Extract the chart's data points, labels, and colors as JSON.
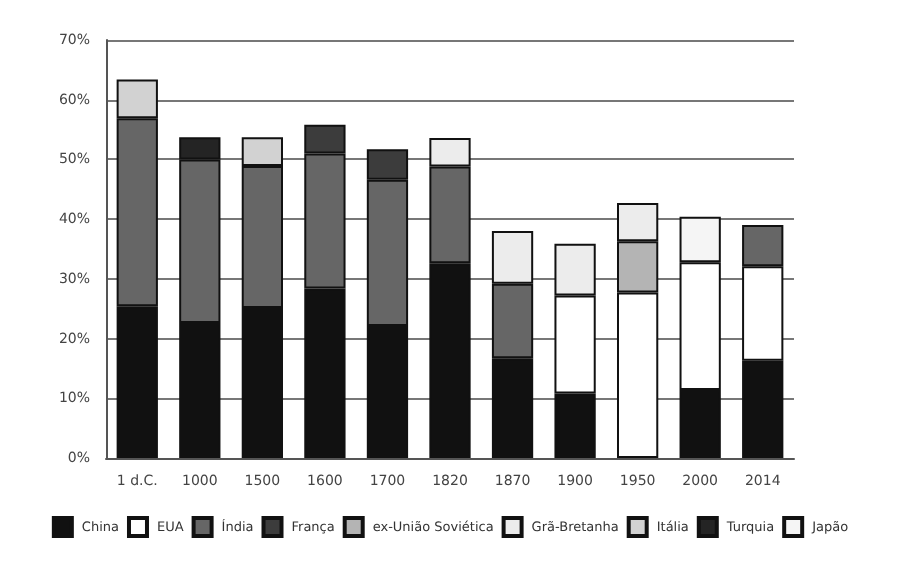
{
  "chart_data": {
    "type": "bar",
    "stacked": true,
    "categories": [
      "1 d.C.",
      "1000",
      "1500",
      "1600",
      "1700",
      "1820",
      "1870",
      "1900",
      "1950",
      "2000",
      "2014"
    ],
    "series": [
      {
        "name": "China",
        "color": "#111111",
        "values": [
          25.4,
          22.6,
          25.1,
          28.4,
          22.1,
          32.6,
          16.7,
          10.8,
          null,
          11.4,
          16.3
        ]
      },
      {
        "name": "EUA",
        "color": "#ffffff",
        "values": [
          null,
          null,
          null,
          null,
          null,
          null,
          null,
          16.4,
          27.7,
          21.4,
          15.8
        ]
      },
      {
        "name": "Índia",
        "color": "#666666",
        "values": [
          31.5,
          27.4,
          23.8,
          22.6,
          24.5,
          16.2,
          12.5,
          null,
          null,
          null,
          6.9
        ]
      },
      {
        "name": "França",
        "color": "#3c3c3c",
        "values": [
          null,
          null,
          null,
          4.8,
          5.1,
          null,
          null,
          null,
          null,
          null,
          null
        ]
      },
      {
        "name": "ex-União Soviética",
        "color": "#b4b4b4",
        "values": [
          null,
          null,
          null,
          null,
          null,
          null,
          null,
          null,
          8.6,
          null,
          null
        ]
      },
      {
        "name": "Grã-Bretanha",
        "color": "#ececec",
        "values": [
          null,
          null,
          null,
          null,
          null,
          4.8,
          8.8,
          8.7,
          6.4,
          null,
          null
        ]
      },
      {
        "name": "Itália",
        "color": "#d2d2d2",
        "values": [
          6.5,
          null,
          4.8,
          null,
          null,
          null,
          null,
          null,
          null,
          null,
          null
        ]
      },
      {
        "name": "Turquia",
        "color": "#242424",
        "values": [
          null,
          3.7,
          null,
          null,
          null,
          null,
          null,
          null,
          null,
          null,
          null
        ]
      },
      {
        "name": "Japão",
        "color": "#f5f5f5",
        "values": [
          null,
          null,
          null,
          null,
          null,
          null,
          null,
          null,
          null,
          7.6,
          null
        ]
      }
    ],
    "ylim": [
      0,
      70
    ],
    "yticks": [
      {
        "value": 0,
        "label": "0%"
      },
      {
        "value": 10,
        "label": "10%"
      },
      {
        "value": 20,
        "label": "20%"
      },
      {
        "value": 30,
        "label": "30%"
      },
      {
        "value": 40,
        "label": "40%"
      },
      {
        "value": 50,
        "label": "50%"
      },
      {
        "value": 60,
        "label": "60%"
      },
      {
        "value": 70,
        "label": "70%"
      }
    ],
    "grid": "y",
    "legend": "bottom"
  }
}
